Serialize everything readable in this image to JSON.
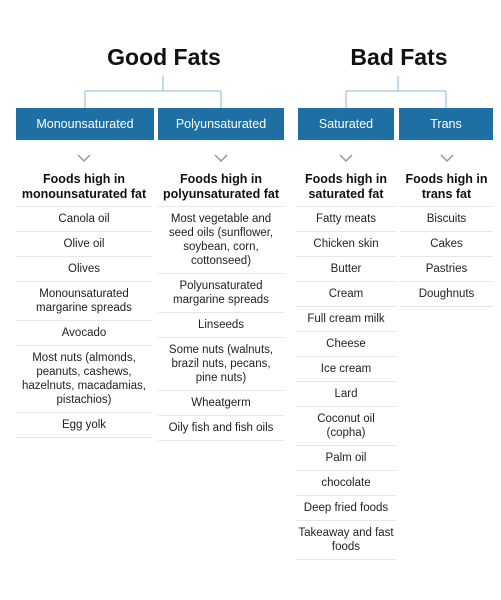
{
  "groups": {
    "good": "Good Fats",
    "bad": "Bad Fats"
  },
  "columns": [
    {
      "header": "Monounsaturated",
      "title": "Foods high in monounsaturated fat",
      "items": [
        "Canola oil",
        "Olive oil",
        "Olives",
        "Monounsaturated margarine spreads",
        "Avocado",
        "Most nuts (almonds, peanuts, cashews, hazelnuts, macadamias, pistachios)",
        "Egg yolk"
      ]
    },
    {
      "header": "Polyunsaturated",
      "title": "Foods high in polyunsaturated fat",
      "items": [
        "Most vegetable and seed oils (sunflower, soybean, corn, cottonseed)",
        "Polyunsaturated margarine spreads",
        "Linseeds",
        "Some nuts (walnuts, brazil nuts, pecans, pine nuts)",
        "Wheatgerm",
        "Oily fish and fish oils"
      ]
    },
    {
      "header": "Saturated",
      "title": "Foods high in saturated fat",
      "items": [
        "Fatty meats",
        "Chicken skin",
        "Butter",
        "Cream",
        "Full cream milk",
        "Cheese",
        "Ice cream",
        "Lard",
        "Coconut oil (copha)",
        "Palm oil",
        "chocolate",
        "Deep fried foods",
        "Takeaway and fast foods"
      ]
    },
    {
      "header": "Trans",
      "title": "Foods high in trans fat",
      "items": [
        "Biscuits",
        "Cakes",
        "Pastries",
        "Doughnuts"
      ]
    }
  ],
  "colors": {
    "header_bg": "#1e6fa3",
    "connector": "#7fb8d8",
    "chevron": "#999999"
  }
}
